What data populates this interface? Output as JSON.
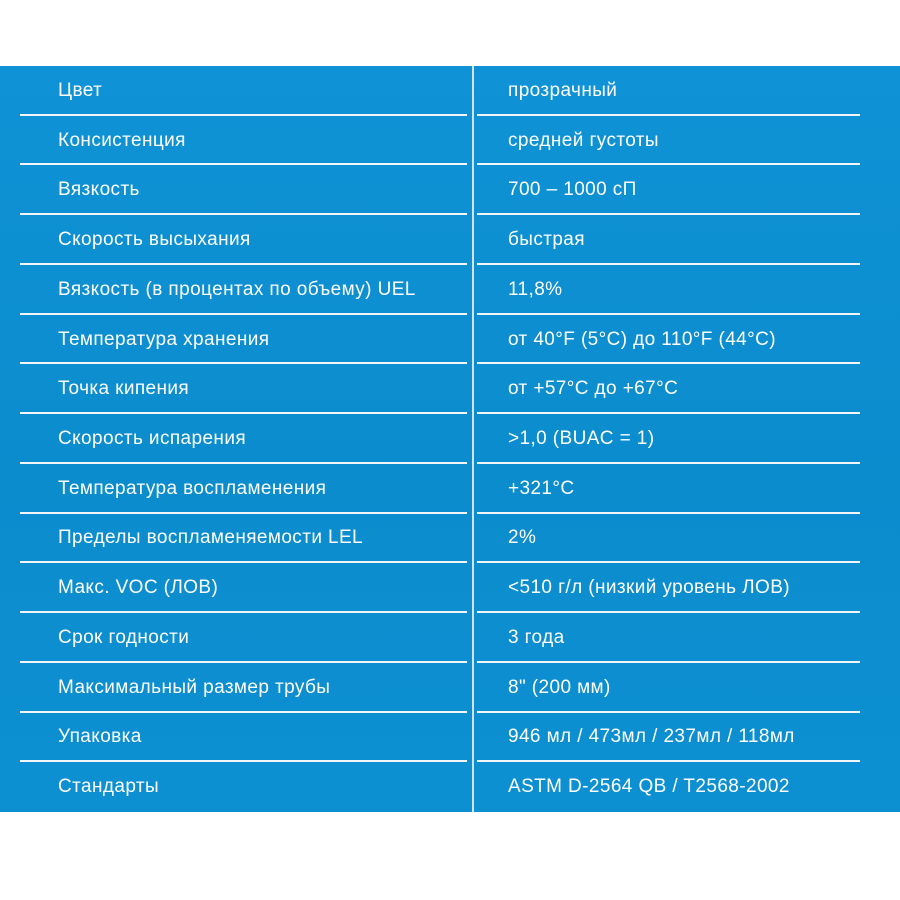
{
  "page": {
    "background_color": "#ffffff",
    "accent_color": "#0c8ed0",
    "divider_color": "#f2f6f8",
    "text_color": "#ffffff"
  },
  "table": {
    "columns": [
      "property",
      "value"
    ],
    "rows": [
      {
        "property": "Цвет",
        "value": "прозрачный"
      },
      {
        "property": "Консистенция",
        "value": "средней густоты"
      },
      {
        "property": "Вязкость",
        "value": "700 – 1000 сП"
      },
      {
        "property": "Скорость высыхания",
        "value": "быстрая"
      },
      {
        "property": "Вязкость (в процентах по объему) UEL",
        "value": "11,8%"
      },
      {
        "property": "Температура хранения",
        "value": "от 40°F (5°C) до 110°F (44°C)"
      },
      {
        "property": "Точка кипения",
        "value": "от +57°C до +67°C"
      },
      {
        "property": "Скорость испарения",
        "value": ">1,0 (BUAC = 1)"
      },
      {
        "property": "Температура воспламенения",
        "value": "+321°C"
      },
      {
        "property": "Пределы воспламеняемости LEL",
        "value": "2%"
      },
      {
        "property": "Макс. VOC (ЛОВ)",
        "value": "<510 г/л (низкий уровень ЛОВ)"
      },
      {
        "property": "Срок годности",
        "value": "3 года"
      },
      {
        "property": "Максимальный размер трубы",
        "value": "8\" (200 мм)"
      },
      {
        "property": "Упаковка",
        "value": "946 мл / 473мл / 237мл / 118мл"
      },
      {
        "property": "Стандарты",
        "value": "ASTM D-2564 QB / T2568-2002"
      }
    ]
  }
}
